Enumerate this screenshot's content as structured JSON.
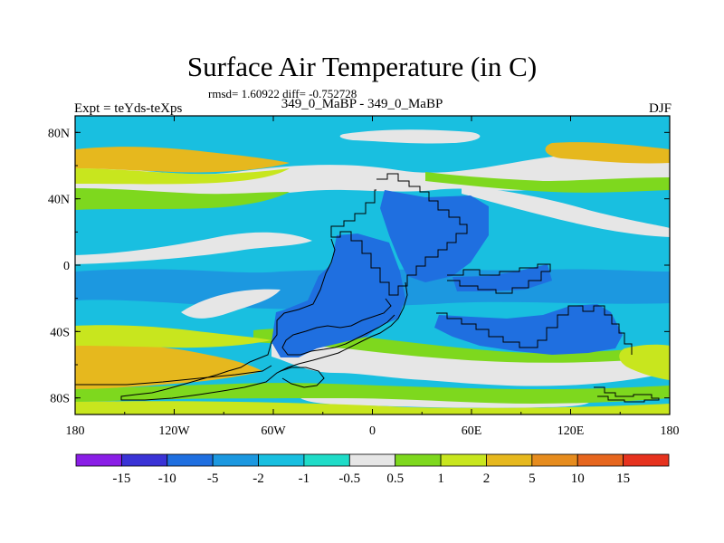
{
  "title": "Surface Air Temperature (in C)",
  "stats_line": "rmsd= 1.60922 diff= -0.752728",
  "left_subtitle": "Expt = teYds-teXps",
  "center_subtitle": "349_0_MaBP - 349_0_MaBP",
  "right_subtitle": "DJF",
  "lat_labels": [
    "80N",
    "40N",
    "0",
    "40S",
    "80S"
  ],
  "lon_labels": [
    "180",
    "120W",
    "60W",
    "0",
    "60E",
    "120E",
    "180"
  ],
  "colorbar": {
    "labels": [
      "-15",
      "-10",
      "-5",
      "-2",
      "-1",
      "-0.5",
      "0.5",
      "1",
      "2",
      "5",
      "10",
      "15"
    ],
    "colors": [
      "#8a1ee6",
      "#3a33d6",
      "#1f6fe0",
      "#1c98e0",
      "#19bfe0",
      "#1fdcc8",
      "#e6e6e6",
      "#7ed81e",
      "#c8e61e",
      "#e6b81e",
      "#e68c1e",
      "#e6661e",
      "#e6321e"
    ]
  },
  "palette": {
    "ocean_base": "#19bfe0",
    "tropics": "#1c98e0",
    "land_cold": "#1f6fe0",
    "neutral": "#e6e6e6",
    "green": "#7ed81e",
    "yellow": "#c8e61e",
    "orange": "#e6b81e"
  }
}
